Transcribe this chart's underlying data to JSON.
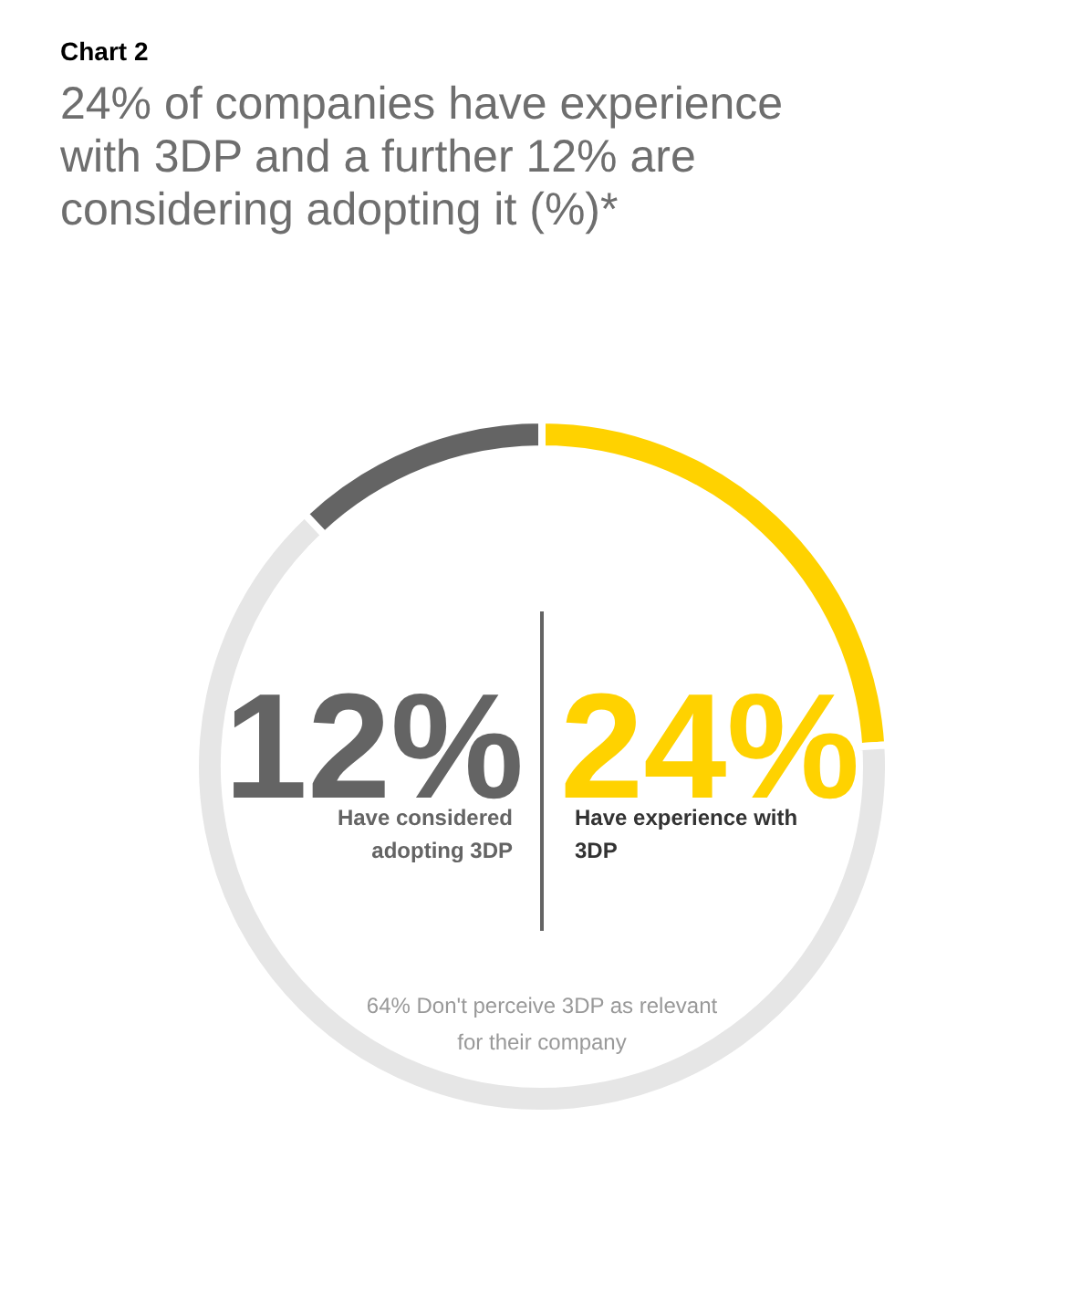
{
  "chart_data": {
    "type": "donut",
    "title": "Chart 2",
    "subtitle": "24% of companies have experience with 3DP and a further 12% are considering adopting it (%)*",
    "categories": [
      "Have experience with 3DP",
      "Don't perceive 3DP as relevant for their company",
      "Have considered adopting 3DP"
    ],
    "values": [
      24,
      64,
      12
    ],
    "colors": [
      "#ffd200",
      "#e6e6e6",
      "#646464"
    ],
    "value_labels": [
      "24%",
      "64%",
      "12%"
    ]
  }
}
